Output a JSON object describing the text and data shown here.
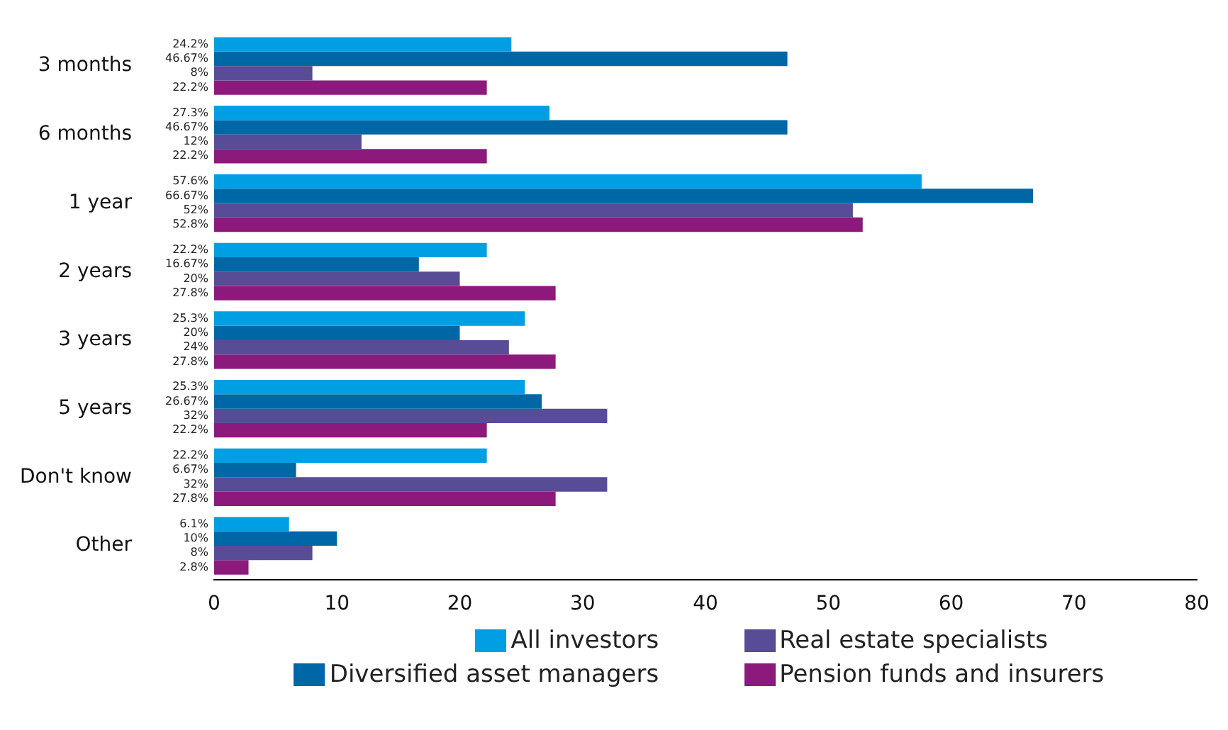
{
  "chart_data": {
    "type": "bar",
    "orientation": "horizontal",
    "categories": [
      "3 months",
      "6 months",
      "1 year",
      "2 years",
      "3 years",
      "5 years",
      "Don't know",
      "Other"
    ],
    "series": [
      {
        "name": "All investors",
        "color": "#009fe3",
        "values": [
          24.2,
          27.3,
          57.6,
          22.2,
          25.3,
          25.3,
          22.2,
          6.1
        ],
        "value_labels": [
          "24.2%",
          "27.3%",
          "57.6%",
          "22.2%",
          "25.3%",
          "25.3%",
          "22.2%",
          "6.1%"
        ]
      },
      {
        "name": "Diversified asset managers",
        "color": "#0067a6",
        "values": [
          46.67,
          46.67,
          66.67,
          16.67,
          20,
          26.67,
          6.67,
          10
        ],
        "value_labels": [
          "46.67%",
          "46.67%",
          "66.67%",
          "16.67%",
          "20%",
          "26.67%",
          "6.67%",
          "10%"
        ]
      },
      {
        "name": "Real estate specialists",
        "color": "#584c97",
        "values": [
          8,
          12,
          52,
          20,
          24,
          32,
          32,
          8
        ],
        "value_labels": [
          "8%",
          "12%",
          "52%",
          "20%",
          "24%",
          "32%",
          "32%",
          "8%"
        ]
      },
      {
        "name": "Pension funds and insurers",
        "color": "#8c1a7d",
        "values": [
          22.2,
          22.2,
          52.8,
          27.8,
          27.8,
          22.2,
          27.8,
          2.8
        ],
        "value_labels": [
          "22.2%",
          "22.2%",
          "52.8%",
          "27.8%",
          "27.8%",
          "22.2%",
          "27.8%",
          "2.8%"
        ]
      }
    ],
    "xlim": [
      0,
      80
    ],
    "xticks": [
      0,
      10,
      20,
      30,
      40,
      50,
      60,
      70,
      80
    ],
    "grid": false,
    "legend": "bottom"
  }
}
